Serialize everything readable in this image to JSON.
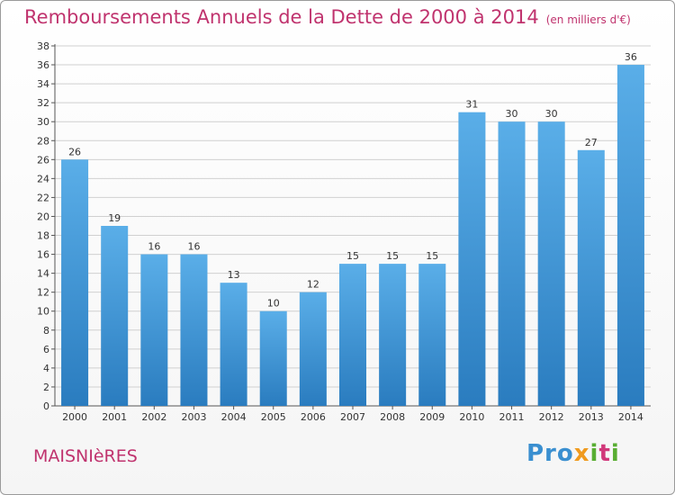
{
  "title": "Remboursements Annuels de la Dette de 2000 à 2014",
  "subtitle": "(en milliers d'€)",
  "commune": "MAISNIèRES",
  "logo": [
    "Pro",
    "x",
    "i",
    "t",
    "i"
  ],
  "colors": {
    "bar_top": "#5aaee8",
    "bar_bottom": "#2a7cbf",
    "title": "#c0336e",
    "grid": "#d0d0d0"
  },
  "chart_data": {
    "type": "bar",
    "title": "Remboursements Annuels de la Dette de 2000 à 2014",
    "xlabel": "",
    "ylabel": "",
    "categories": [
      "2000",
      "2001",
      "2002",
      "2003",
      "2004",
      "2005",
      "2006",
      "2007",
      "2008",
      "2009",
      "2010",
      "2011",
      "2012",
      "2013",
      "2014"
    ],
    "values": [
      26,
      19,
      16,
      16,
      13,
      10,
      12,
      15,
      15,
      15,
      31,
      30,
      30,
      27,
      36
    ],
    "ylim": [
      0,
      38
    ],
    "yticks": [
      0,
      2,
      4,
      6,
      8,
      10,
      12,
      14,
      16,
      18,
      20,
      22,
      24,
      26,
      28,
      30,
      32,
      34,
      36,
      38
    ],
    "grid": true,
    "legend": "none"
  }
}
